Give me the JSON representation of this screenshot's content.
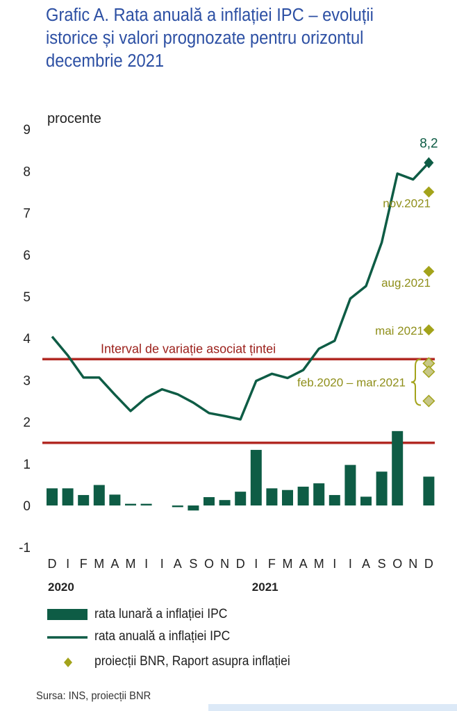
{
  "title": "Grafic A. Rata anuală a inflației IPC – evoluții istorice și valori prognozate pentru orizontul decembrie 2021",
  "source": "Sursa: INS, proiecții BNR",
  "colors": {
    "title": "#2c4fa3",
    "bars": "#0e5c45",
    "line": "#0e5c45",
    "band": "#b22a24",
    "projection": "#a3a31a",
    "projection_light": "#c7c787",
    "projection_label": "#8f8f1a",
    "band_label": "#9b1f1a"
  },
  "legend": [
    {
      "key": "bar",
      "label": "rata lunară a inflației IPC"
    },
    {
      "key": "line",
      "label": "rata anuală a inflației IPC"
    },
    {
      "key": "diamond",
      "label": "proiecții BNR, Raport asupra inflației"
    }
  ],
  "chart_data": {
    "type": "bar+line",
    "ylabel": "procente",
    "ylim": [
      -1,
      9
    ],
    "yticks": [
      "-1",
      "0",
      "1",
      "2",
      "3",
      "4",
      "5",
      "6",
      "7",
      "8",
      "9"
    ],
    "categories": [
      "D",
      "I",
      "F",
      "M",
      "A",
      "M",
      "I",
      "I",
      "A",
      "S",
      "O",
      "N",
      "D",
      "I",
      "F",
      "M",
      "A",
      "M",
      "I",
      "I",
      "A",
      "S",
      "O",
      "N",
      "D"
    ],
    "year_labels": [
      {
        "index": 0,
        "label": "2020"
      },
      {
        "index": 13,
        "label": "2021"
      }
    ],
    "series": [
      {
        "name": "rata lunară a inflației IPC",
        "kind": "bar",
        "values": [
          0.41,
          0.41,
          0.25,
          0.49,
          0.26,
          0.04,
          0.04,
          null,
          -0.04,
          -0.12,
          0.2,
          0.13,
          0.33,
          1.33,
          0.41,
          0.37,
          0.45,
          0.53,
          0.25,
          0.97,
          0.21,
          0.81,
          1.78,
          null,
          0.69
        ]
      },
      {
        "name": "rata anuală a inflației IPC",
        "kind": "line",
        "values": [
          4.04,
          3.59,
          3.06,
          3.06,
          2.65,
          2.26,
          2.58,
          2.78,
          2.66,
          2.46,
          2.21,
          2.14,
          2.06,
          2.98,
          3.15,
          3.05,
          3.24,
          3.75,
          3.94,
          4.95,
          5.25,
          6.29,
          7.94,
          7.8,
          8.2
        ]
      }
    ],
    "end_value_label": "8,2",
    "projections": [
      {
        "label": "nov.2021",
        "value": 7.5
      },
      {
        "label": "aug.2021",
        "value": 5.6
      },
      {
        "label": "mai 2021",
        "value": 4.2
      },
      {
        "label": "feb.2020 – mar.2021",
        "values": [
          3.4,
          3.2,
          2.5
        ]
      }
    ],
    "target_band": {
      "label": "Interval de variație asociat țintei",
      "lower": 1.5,
      "upper": 3.5
    },
    "grid": false
  }
}
